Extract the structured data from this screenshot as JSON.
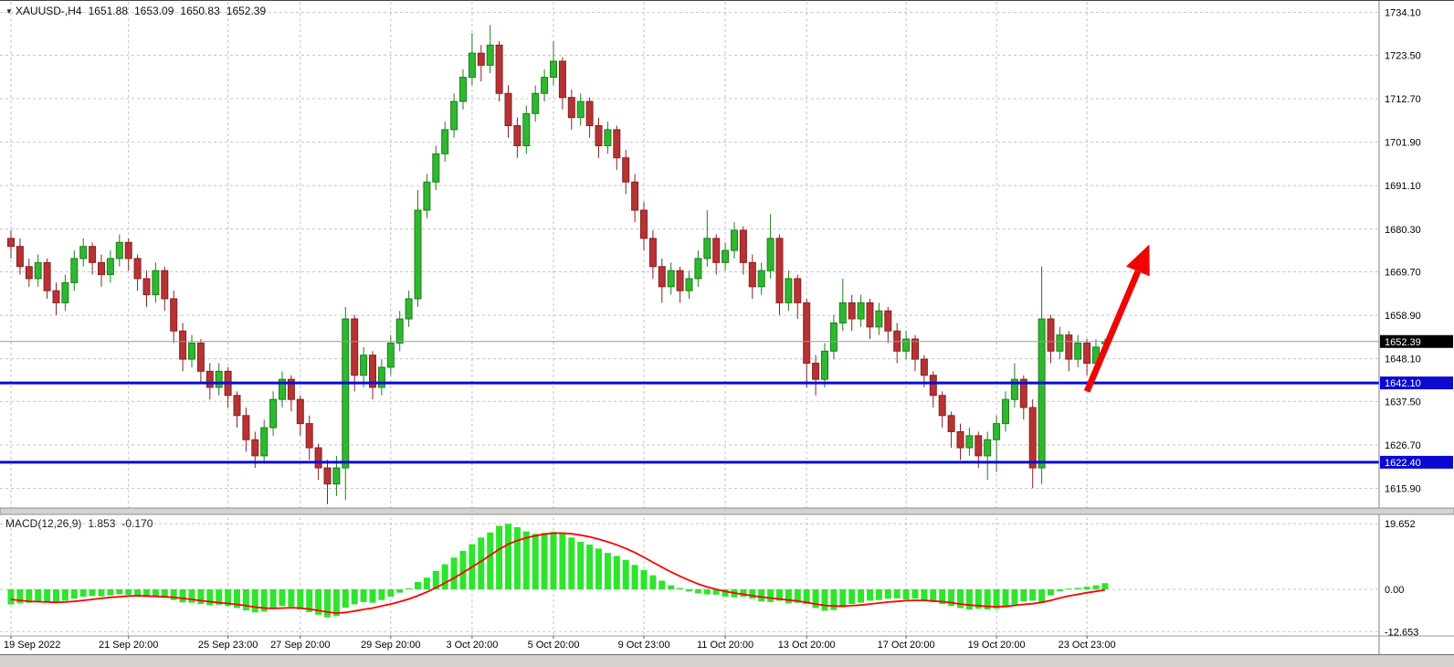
{
  "header": {
    "symbol_label": "XAUUSD-,H4",
    "open": "1651.88",
    "high": "1653.09",
    "low": "1650.83",
    "close": "1652.39"
  },
  "icons": {
    "dropdown": "▼"
  },
  "indicator": {
    "label": "MACD(12,26,9)",
    "macd_value": "1.853",
    "signal_value": "-0.170"
  },
  "price_axis": {
    "labels": [
      {
        "text": "1734.10",
        "price": 1734.1
      },
      {
        "text": "1723.50",
        "price": 1723.5
      },
      {
        "text": "1712.70",
        "price": 1712.7
      },
      {
        "text": "1701.90",
        "price": 1701.9
      },
      {
        "text": "1691.10",
        "price": 1691.1
      },
      {
        "text": "1680.30",
        "price": 1680.3
      },
      {
        "text": "1669.70",
        "price": 1669.7
      },
      {
        "text": "1658.90",
        "price": 1658.9
      },
      {
        "text": "1648.10",
        "price": 1648.1
      },
      {
        "text": "1637.50",
        "price": 1637.5
      },
      {
        "text": "1626.70",
        "price": 1626.7
      },
      {
        "text": "1615.90",
        "price": 1615.9
      }
    ],
    "tags": [
      {
        "text": "1652.39",
        "price": 1652.39,
        "bg": "#000000"
      },
      {
        "text": "1642.10",
        "price": 1642.1,
        "bg": "#0a0ad2"
      },
      {
        "text": "1622.40",
        "price": 1622.4,
        "bg": "#0a0ad2"
      }
    ]
  },
  "time_axis": {
    "ticks": [
      {
        "label": "19 Sep 2022",
        "index": 0
      },
      {
        "label": "21 Sep 20:00",
        "index": 13
      },
      {
        "label": "25 Sep 23:00",
        "index": 24
      },
      {
        "label": "27 Sep 20:00",
        "index": 32
      },
      {
        "label": "29 Sep 20:00",
        "index": 42
      },
      {
        "label": "3 Oct 20:00",
        "index": 51
      },
      {
        "label": "5 Oct 20:00",
        "index": 60
      },
      {
        "label": "9 Oct 23:00",
        "index": 70
      },
      {
        "label": "11 Oct 20:00",
        "index": 79
      },
      {
        "label": "13 Oct 20:00",
        "index": 88
      },
      {
        "label": "17 Oct 20:00",
        "index": 99
      },
      {
        "label": "19 Oct 20:00",
        "index": 109
      },
      {
        "label": "23 Oct 23:00",
        "index": 119
      }
    ]
  },
  "chart_data": {
    "type": "candlestick",
    "symbol": "XAUUSD-",
    "timeframe": "H4",
    "title": "XAUUSD-,H4 1651.88 1653.09 1650.83 1652.39",
    "y_range": [
      1615.9,
      1734.1
    ],
    "grid": true,
    "current_price": 1652.39,
    "horizontal_lines": [
      {
        "price": 1642.1
      },
      {
        "price": 1622.4
      }
    ],
    "annotation_arrow": {
      "from_index": 119,
      "from_price": 1640.0,
      "to_index": 125.9,
      "to_price": 1676.5
    },
    "candles": [
      [
        1678,
        1680,
        1673,
        1676
      ],
      [
        1676,
        1678,
        1669,
        1671
      ],
      [
        1671,
        1673,
        1666,
        1668
      ],
      [
        1668,
        1674,
        1666,
        1672
      ],
      [
        1672,
        1673,
        1663,
        1665
      ],
      [
        1665,
        1667,
        1659,
        1662
      ],
      [
        1662,
        1669,
        1660,
        1667
      ],
      [
        1667,
        1675,
        1665,
        1673
      ],
      [
        1673,
        1678,
        1671,
        1676
      ],
      [
        1676,
        1677,
        1669,
        1672
      ],
      [
        1672,
        1674,
        1666,
        1669
      ],
      [
        1669,
        1675,
        1667,
        1673
      ],
      [
        1673,
        1679,
        1671,
        1677
      ],
      [
        1677,
        1678,
        1670,
        1673
      ],
      [
        1673,
        1674,
        1665,
        1668
      ],
      [
        1668,
        1670,
        1661,
        1664
      ],
      [
        1664,
        1672,
        1662,
        1670
      ],
      [
        1670,
        1671,
        1660,
        1663
      ],
      [
        1663,
        1665,
        1652,
        1655
      ],
      [
        1655,
        1657,
        1645,
        1648
      ],
      [
        1648,
        1654,
        1646,
        1652
      ],
      [
        1652,
        1653,
        1642,
        1645
      ],
      [
        1645,
        1647,
        1638,
        1641
      ],
      [
        1641,
        1647,
        1639,
        1645
      ],
      [
        1645,
        1646,
        1636,
        1639
      ],
      [
        1639,
        1640,
        1631,
        1634
      ],
      [
        1634,
        1636,
        1625,
        1628
      ],
      [
        1628,
        1630,
        1621,
        1624
      ],
      [
        1624,
        1633,
        1622,
        1631
      ],
      [
        1631,
        1640,
        1629,
        1638
      ],
      [
        1638,
        1645,
        1636,
        1643
      ],
      [
        1643,
        1644,
        1635,
        1638
      ],
      [
        1638,
        1639,
        1629,
        1632
      ],
      [
        1632,
        1634,
        1623,
        1626
      ],
      [
        1626,
        1627,
        1618,
        1621
      ],
      [
        1621,
        1623,
        1612,
        1617
      ],
      [
        1617,
        1624,
        1614,
        1621
      ],
      [
        1621,
        1661,
        1613,
        1658
      ],
      [
        1658,
        1659,
        1640,
        1644
      ],
      [
        1644,
        1651,
        1641,
        1649
      ],
      [
        1649,
        1650,
        1638,
        1641
      ],
      [
        1641,
        1648,
        1639,
        1646
      ],
      [
        1646,
        1654,
        1644,
        1652
      ],
      [
        1652,
        1660,
        1650,
        1658
      ],
      [
        1658,
        1665,
        1656,
        1663
      ],
      [
        1663,
        1690,
        1661,
        1685
      ],
      [
        1685,
        1694,
        1683,
        1692
      ],
      [
        1692,
        1701,
        1690,
        1699
      ],
      [
        1699,
        1707,
        1697,
        1705
      ],
      [
        1705,
        1714,
        1703,
        1712
      ],
      [
        1712,
        1720,
        1710,
        1718
      ],
      [
        1718,
        1729,
        1716,
        1724
      ],
      [
        1724,
        1726,
        1717,
        1721
      ],
      [
        1721,
        1731,
        1719,
        1726
      ],
      [
        1726,
        1727,
        1712,
        1714
      ],
      [
        1714,
        1716,
        1703,
        1706
      ],
      [
        1706,
        1708,
        1698,
        1701
      ],
      [
        1701,
        1711,
        1699,
        1709
      ],
      [
        1709,
        1716,
        1707,
        1714
      ],
      [
        1714,
        1720,
        1712,
        1718
      ],
      [
        1718,
        1727,
        1716,
        1722
      ],
      [
        1722,
        1723,
        1710,
        1713
      ],
      [
        1713,
        1715,
        1705,
        1708
      ],
      [
        1708,
        1714,
        1706,
        1712
      ],
      [
        1712,
        1713,
        1703,
        1706
      ],
      [
        1706,
        1708,
        1698,
        1701
      ],
      [
        1701,
        1707,
        1699,
        1705
      ],
      [
        1705,
        1706,
        1695,
        1698
      ],
      [
        1698,
        1700,
        1689,
        1692
      ],
      [
        1692,
        1694,
        1682,
        1685
      ],
      [
        1685,
        1687,
        1675,
        1678
      ],
      [
        1678,
        1680,
        1668,
        1671
      ],
      [
        1671,
        1673,
        1662,
        1666
      ],
      [
        1666,
        1672,
        1664,
        1670
      ],
      [
        1670,
        1671,
        1662,
        1665
      ],
      [
        1665,
        1670,
        1663,
        1668
      ],
      [
        1668,
        1675,
        1666,
        1673
      ],
      [
        1673,
        1685,
        1671,
        1678
      ],
      [
        1678,
        1679,
        1669,
        1672
      ],
      [
        1672,
        1677,
        1670,
        1675
      ],
      [
        1675,
        1682,
        1673,
        1680
      ],
      [
        1680,
        1681,
        1669,
        1672
      ],
      [
        1672,
        1674,
        1663,
        1666
      ],
      [
        1666,
        1672,
        1664,
        1670
      ],
      [
        1670,
        1684,
        1668,
        1678
      ],
      [
        1678,
        1679,
        1659,
        1662
      ],
      [
        1662,
        1670,
        1660,
        1668
      ],
      [
        1668,
        1669,
        1658,
        1662
      ],
      [
        1662,
        1663,
        1641,
        1647
      ],
      [
        1647,
        1649,
        1639,
        1643
      ],
      [
        1643,
        1652,
        1641,
        1650
      ],
      [
        1650,
        1659,
        1648,
        1657
      ],
      [
        1657,
        1668,
        1655,
        1662
      ],
      [
        1662,
        1664,
        1655,
        1658
      ],
      [
        1658,
        1664,
        1656,
        1662
      ],
      [
        1662,
        1663,
        1653,
        1656
      ],
      [
        1656,
        1662,
        1654,
        1660
      ],
      [
        1660,
        1661,
        1652,
        1655
      ],
      [
        1655,
        1657,
        1647,
        1650
      ],
      [
        1650,
        1655,
        1648,
        1653
      ],
      [
        1653,
        1654,
        1645,
        1648
      ],
      [
        1648,
        1649,
        1641,
        1644
      ],
      [
        1644,
        1645,
        1636,
        1639
      ],
      [
        1639,
        1640,
        1631,
        1634
      ],
      [
        1634,
        1635,
        1626,
        1630
      ],
      [
        1630,
        1632,
        1623,
        1626
      ],
      [
        1626,
        1631,
        1624,
        1629
      ],
      [
        1629,
        1630,
        1621,
        1624
      ],
      [
        1624,
        1630,
        1618,
        1628
      ],
      [
        1628,
        1634,
        1620,
        1632
      ],
      [
        1632,
        1640,
        1630,
        1638
      ],
      [
        1638,
        1647,
        1636,
        1643
      ],
      [
        1643,
        1644,
        1633,
        1636
      ],
      [
        1636,
        1638,
        1616,
        1621
      ],
      [
        1621,
        1671,
        1617,
        1658
      ],
      [
        1658,
        1659,
        1647,
        1650
      ],
      [
        1650,
        1656,
        1648,
        1654
      ],
      [
        1654,
        1655,
        1645,
        1648
      ],
      [
        1648,
        1654,
        1646,
        1652
      ],
      [
        1652,
        1653,
        1644,
        1647
      ],
      [
        1647,
        1653,
        1645,
        1651
      ],
      [
        1651.88,
        1653.09,
        1650.83,
        1652.39
      ]
    ],
    "macd": {
      "label": "MACD(12,26,9)",
      "levels": [
        {
          "text": "19.652",
          "value": 19.652
        },
        {
          "text": "0.00",
          "value": 0
        },
        {
          "text": "-12.653",
          "value": -12.653
        }
      ],
      "histogram": [
        -4.5,
        -4.2,
        -4.0,
        -3.6,
        -3.8,
        -3.9,
        -3.4,
        -2.8,
        -2.2,
        -2.0,
        -2.1,
        -1.8,
        -1.5,
        -1.6,
        -1.9,
        -2.3,
        -2.2,
        -2.6,
        -3.2,
        -3.9,
        -4.0,
        -4.4,
        -4.8,
        -4.6,
        -5.0,
        -5.6,
        -6.3,
        -6.9,
        -6.6,
        -5.8,
        -5.0,
        -5.2,
        -6.0,
        -6.8,
        -7.6,
        -8.4,
        -8.0,
        -5.5,
        -4.5,
        -3.8,
        -4.0,
        -3.2,
        -2.2,
        -1.0,
        0.3,
        2.2,
        3.5,
        5.5,
        7.5,
        9.5,
        11.5,
        13.5,
        15.5,
        17.0,
        19.0,
        19.6,
        18.6,
        17.3,
        16.6,
        16.9,
        17.2,
        16.8,
        15.5,
        14.2,
        13.4,
        12.2,
        10.9,
        10.0,
        8.8,
        7.3,
        5.8,
        4.2,
        2.6,
        1.2,
        0.4,
        -0.6,
        -1.2,
        -1.5,
        -1.6,
        -2.2,
        -2.4,
        -2.2,
        -2.8,
        -3.6,
        -3.8,
        -3.4,
        -4.2,
        -4.0,
        -4.4,
        -5.6,
        -6.4,
        -6.2,
        -5.4,
        -4.4,
        -4.0,
        -3.4,
        -3.2,
        -2.8,
        -2.7,
        -3.0,
        -2.8,
        -3.2,
        -3.8,
        -4.4,
        -5.0,
        -5.6,
        -6.0,
        -5.8,
        -6.0,
        -5.8,
        -5.4,
        -4.6,
        -3.6,
        -3.4,
        -4.0,
        -1.8,
        -0.6,
        0.2,
        0.4,
        0.8,
        1.2,
        1.853
      ],
      "signal": [
        -3.0,
        -3.3,
        -3.6,
        -3.7,
        -3.8,
        -3.9,
        -3.8,
        -3.6,
        -3.3,
        -3.0,
        -2.7,
        -2.4,
        -2.2,
        -2.0,
        -1.9,
        -2.0,
        -2.1,
        -2.2,
        -2.4,
        -2.7,
        -3.0,
        -3.4,
        -3.7,
        -4.0,
        -4.2,
        -4.5,
        -4.9,
        -5.3,
        -5.6,
        -5.7,
        -5.6,
        -5.5,
        -5.6,
        -5.9,
        -6.3,
        -6.8,
        -7.1,
        -6.9,
        -6.5,
        -6.0,
        -5.6,
        -5.0,
        -4.4,
        -3.7,
        -2.9,
        -1.9,
        -0.8,
        0.5,
        1.9,
        3.4,
        5.0,
        6.7,
        8.4,
        10.2,
        12.0,
        13.5,
        14.6,
        15.4,
        16.0,
        16.5,
        16.8,
        16.8,
        16.6,
        16.2,
        15.7,
        15.0,
        14.2,
        13.3,
        12.2,
        11.0,
        9.6,
        8.1,
        6.6,
        5.2,
        3.9,
        2.7,
        1.6,
        0.7,
        0.0,
        -0.6,
        -1.1,
        -1.5,
        -1.9,
        -2.3,
        -2.6,
        -2.9,
        -3.2,
        -3.5,
        -3.9,
        -4.4,
        -4.8,
        -5.0,
        -5.0,
        -4.9,
        -4.7,
        -4.4,
        -4.1,
        -3.8,
        -3.6,
        -3.4,
        -3.3,
        -3.3,
        -3.5,
        -3.7,
        -4.0,
        -4.4,
        -4.7,
        -4.9,
        -5.1,
        -5.2,
        -5.1,
        -4.8,
        -4.5,
        -4.3,
        -3.9,
        -3.3,
        -2.6,
        -2.0,
        -1.5,
        -1.0,
        -0.6,
        -0.17
      ]
    }
  },
  "colors": {
    "up": "#2eb82e",
    "up_dark": "#1e7d1e",
    "down": "#b73333",
    "down_dark": "#8a2020",
    "histogram": "#2de52d",
    "signal": "#ff0000",
    "level_line": "#0a0ad2",
    "grid": "#c3c3c3",
    "arrow": "#f00505",
    "tag_current_bg": "#000000",
    "tag_level_bg": "#0a0ad2",
    "panel_sep": "#d6d3ce"
  }
}
